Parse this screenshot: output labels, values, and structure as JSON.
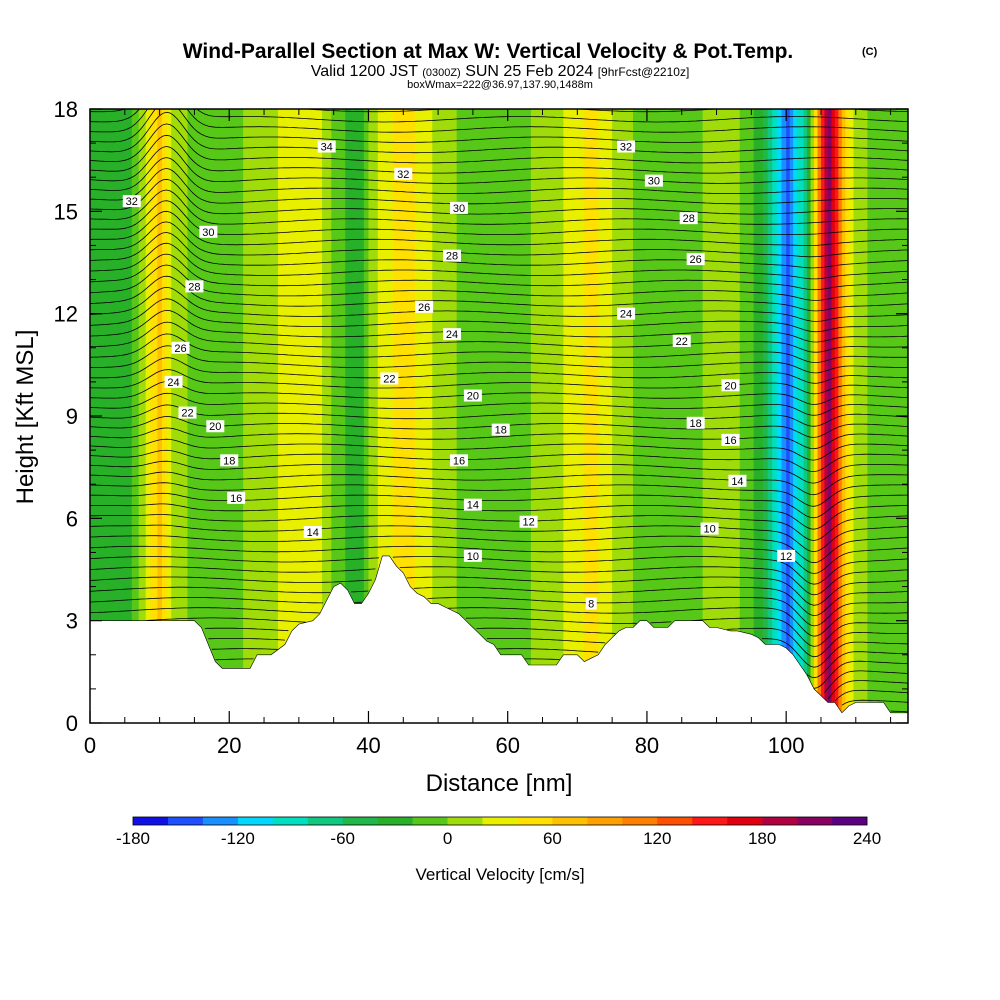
{
  "chart_data": {
    "type": "heatmap",
    "title": "Wind-Parallel Section at Max W: Vertical Velocity & Pot.Temp.",
    "title_mark": "(C)",
    "subtitle_prefix": "Valid 1200 JST",
    "subtitle_small": "(0300Z)",
    "subtitle_date": "SUN 25 Feb 2024",
    "subtitle_fcst": "[9hrFcst@2210z]",
    "subtitle2": "boxWmax=222@36.97,137.90,1488m",
    "xlabel": "Distance [nm]",
    "ylabel": "Height [Kft MSL]",
    "xlim": [
      0,
      117.5
    ],
    "ylim": [
      0,
      18
    ],
    "x_ticks": [
      "0",
      "20",
      "40",
      "60",
      "80",
      "100"
    ],
    "x_tick_values": [
      0,
      20,
      40,
      60,
      80,
      100
    ],
    "y_ticks": [
      "0",
      "3",
      "6",
      "9",
      "12",
      "15",
      "18"
    ],
    "y_tick_values": [
      0,
      3,
      6,
      9,
      12,
      15,
      18
    ],
    "colorbar": {
      "label": "Vertical Velocity [cm/s]",
      "min": -180,
      "max": 240,
      "tick_labels": [
        "-180",
        "-120",
        "-60",
        "0",
        "60",
        "120",
        "180",
        "240"
      ],
      "tick_values": [
        -180,
        -120,
        -60,
        0,
        60,
        120,
        180,
        240
      ],
      "colors": [
        "#1010e6",
        "#1f50ff",
        "#1890ff",
        "#00d8ff",
        "#00e0c0",
        "#10c880",
        "#20b848",
        "#28b028",
        "#58c818",
        "#a0dc0a",
        "#e8f000",
        "#ffe000",
        "#ffc000",
        "#ffa000",
        "#ff8000",
        "#ff5000",
        "#ff1818",
        "#e00010",
        "#b00040",
        "#880060",
        "#5a0080"
      ]
    },
    "terrain_kft": [
      [
        0,
        3.0
      ],
      [
        6,
        3.0
      ],
      [
        11,
        3.0
      ],
      [
        14,
        3.0
      ],
      [
        15,
        3.0
      ],
      [
        16,
        2.8
      ],
      [
        17,
        2.3
      ],
      [
        18,
        1.8
      ],
      [
        19,
        1.6
      ],
      [
        20,
        1.6
      ],
      [
        22,
        1.6
      ],
      [
        23,
        1.6
      ],
      [
        24,
        2.0
      ],
      [
        26,
        2.0
      ],
      [
        28,
        2.3
      ],
      [
        29,
        2.7
      ],
      [
        30,
        2.9
      ],
      [
        32,
        3.0
      ],
      [
        33,
        3.2
      ],
      [
        34,
        3.6
      ],
      [
        35,
        4.0
      ],
      [
        36,
        4.1
      ],
      [
        37,
        3.9
      ],
      [
        38,
        3.5
      ],
      [
        39,
        3.5
      ],
      [
        40,
        3.8
      ],
      [
        41,
        4.2
      ],
      [
        42,
        4.9
      ],
      [
        43,
        4.9
      ],
      [
        44,
        4.6
      ],
      [
        45,
        4.4
      ],
      [
        46,
        4.0
      ],
      [
        47,
        3.8
      ],
      [
        48,
        3.7
      ],
      [
        49,
        3.5
      ],
      [
        50,
        3.5
      ],
      [
        51,
        3.4
      ],
      [
        52,
        3.3
      ],
      [
        53,
        3.2
      ],
      [
        54,
        3.0
      ],
      [
        55,
        2.8
      ],
      [
        56,
        2.6
      ],
      [
        57,
        2.4
      ],
      [
        58,
        2.3
      ],
      [
        59,
        2.0
      ],
      [
        60,
        2.0
      ],
      [
        62,
        2.0
      ],
      [
        63,
        1.7
      ],
      [
        67,
        1.7
      ],
      [
        68,
        2.0
      ],
      [
        70,
        2.0
      ],
      [
        71,
        1.8
      ],
      [
        72,
        1.9
      ],
      [
        73,
        2.0
      ],
      [
        74,
        2.3
      ],
      [
        75,
        2.5
      ],
      [
        76,
        2.7
      ],
      [
        77,
        2.8
      ],
      [
        78,
        2.8
      ],
      [
        79,
        3.0
      ],
      [
        80,
        3.0
      ],
      [
        81,
        2.8
      ],
      [
        83,
        2.8
      ],
      [
        84,
        3.0
      ],
      [
        86,
        3.0
      ],
      [
        88,
        3.0
      ],
      [
        89,
        2.8
      ],
      [
        90,
        2.8
      ],
      [
        92,
        2.7
      ],
      [
        93,
        2.7
      ],
      [
        95,
        2.6
      ],
      [
        96,
        2.5
      ],
      [
        97,
        2.3
      ],
      [
        98,
        2.3
      ],
      [
        99,
        2.3
      ],
      [
        100,
        2.2
      ],
      [
        101,
        2.0
      ],
      [
        102,
        1.7
      ],
      [
        103,
        1.4
      ],
      [
        104,
        1.0
      ],
      [
        105,
        0.8
      ],
      [
        106,
        0.6
      ],
      [
        107,
        0.6
      ],
      [
        108,
        0.3
      ],
      [
        109,
        0.5
      ],
      [
        110,
        0.6
      ],
      [
        114,
        0.6
      ],
      [
        115,
        0.3
      ],
      [
        117.5,
        0.3
      ]
    ],
    "w_field": [
      {
        "x": 0,
        "value": -40
      },
      {
        "x": 3,
        "value": -35
      },
      {
        "x": 6,
        "value": -20
      },
      {
        "x": 8,
        "value": 20
      },
      {
        "x": 10,
        "value": 70
      },
      {
        "x": 12,
        "value": 10
      },
      {
        "x": 16,
        "value": -10
      },
      {
        "x": 22,
        "value": 0
      },
      {
        "x": 28,
        "value": 25
      },
      {
        "x": 32,
        "value": 40
      },
      {
        "x": 34,
        "value": 10
      },
      {
        "x": 38,
        "value": -40
      },
      {
        "x": 42,
        "value": 30
      },
      {
        "x": 45,
        "value": 50
      },
      {
        "x": 50,
        "value": 10
      },
      {
        "x": 58,
        "value": -15
      },
      {
        "x": 66,
        "value": 5
      },
      {
        "x": 72,
        "value": 45
      },
      {
        "x": 78,
        "value": 0
      },
      {
        "x": 86,
        "value": -10
      },
      {
        "x": 92,
        "value": 20
      },
      {
        "x": 96,
        "value": -30
      },
      {
        "x": 100,
        "value": -150
      },
      {
        "x": 103,
        "value": -60
      },
      {
        "x": 106,
        "value": 222
      },
      {
        "x": 109,
        "value": 30
      },
      {
        "x": 113,
        "value": -20
      },
      {
        "x": 117.5,
        "value": -10
      }
    ],
    "theta_contours": [
      {
        "level": 8,
        "label": "8",
        "x": 72,
        "y": 3.5
      },
      {
        "level": 10,
        "label": "10",
        "x": 55,
        "y": 4.9
      },
      {
        "level": 10,
        "label": "10",
        "x": 89,
        "y": 5.7
      },
      {
        "level": 12,
        "label": "12",
        "x": 100,
        "y": 4.9
      },
      {
        "level": 12,
        "label": "12",
        "x": 63,
        "y": 5.9
      },
      {
        "level": 14,
        "label": "14",
        "x": 32,
        "y": 5.6
      },
      {
        "level": 14,
        "label": "14",
        "x": 55,
        "y": 6.4
      },
      {
        "level": 14,
        "label": "14",
        "x": 93,
        "y": 7.1
      },
      {
        "level": 16,
        "label": "16",
        "x": 21,
        "y": 6.6
      },
      {
        "level": 16,
        "label": "16",
        "x": 53,
        "y": 7.7
      },
      {
        "level": 16,
        "label": "16",
        "x": 92,
        "y": 8.3
      },
      {
        "level": 18,
        "label": "18",
        "x": 20,
        "y": 7.7
      },
      {
        "level": 18,
        "label": "18",
        "x": 59,
        "y": 8.6
      },
      {
        "level": 18,
        "label": "18",
        "x": 87,
        "y": 8.8
      },
      {
        "level": 20,
        "label": "20",
        "x": 18,
        "y": 8.7
      },
      {
        "level": 20,
        "label": "20",
        "x": 55,
        "y": 9.6
      },
      {
        "level": 20,
        "label": "20",
        "x": 92,
        "y": 9.9
      },
      {
        "level": 22,
        "label": "22",
        "x": 14,
        "y": 9.1
      },
      {
        "level": 22,
        "label": "22",
        "x": 43,
        "y": 10.1
      },
      {
        "level": 22,
        "label": "22",
        "x": 85,
        "y": 11.2
      },
      {
        "level": 24,
        "label": "24",
        "x": 12,
        "y": 10.0
      },
      {
        "level": 24,
        "label": "24",
        "x": 52,
        "y": 11.4
      },
      {
        "level": 24,
        "label": "24",
        "x": 77,
        "y": 12.0
      },
      {
        "level": 26,
        "label": "26",
        "x": 13,
        "y": 11.0
      },
      {
        "level": 26,
        "label": "26",
        "x": 48,
        "y": 12.2
      },
      {
        "level": 26,
        "label": "26",
        "x": 87,
        "y": 13.6
      },
      {
        "level": 28,
        "label": "28",
        "x": 15,
        "y": 12.8
      },
      {
        "level": 28,
        "label": "28",
        "x": 52,
        "y": 13.7
      },
      {
        "level": 28,
        "label": "28",
        "x": 86,
        "y": 14.8
      },
      {
        "level": 30,
        "label": "30",
        "x": 17,
        "y": 14.4
      },
      {
        "level": 30,
        "label": "30",
        "x": 53,
        "y": 15.1
      },
      {
        "level": 30,
        "label": "30",
        "x": 81,
        "y": 15.9
      },
      {
        "level": 32,
        "label": "32",
        "x": 6,
        "y": 15.3
      },
      {
        "level": 32,
        "label": "32",
        "x": 45,
        "y": 16.1
      },
      {
        "level": 32,
        "label": "32",
        "x": 77,
        "y": 16.9
      },
      {
        "level": 34,
        "label": "34",
        "x": 34,
        "y": 16.9
      }
    ]
  }
}
